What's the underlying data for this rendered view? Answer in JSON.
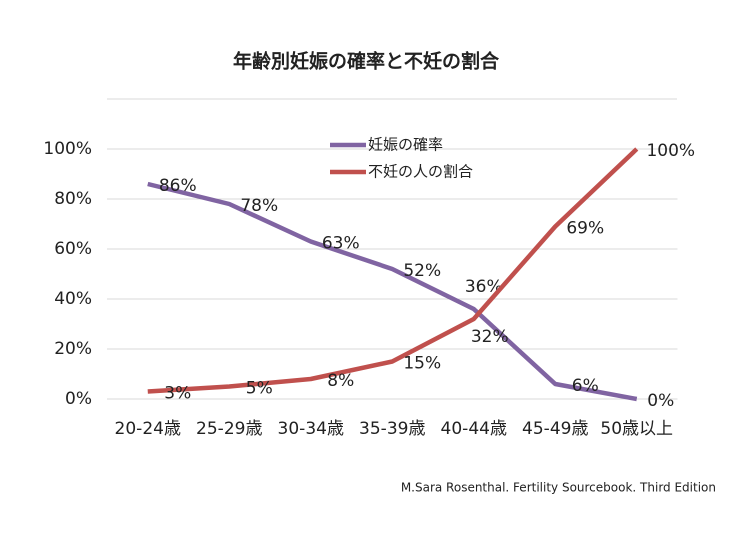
{
  "chart_data": {
    "type": "line",
    "title": "年齢別妊娠の確率と不妊の割合",
    "categories": [
      "20-24歳",
      "25-29歳",
      "30-34歳",
      "35-39歳",
      "40-44歳",
      "45-49歳",
      "50歳以上"
    ],
    "series": [
      {
        "name": "妊娠の確率",
        "color": "#8064a2",
        "values": [
          86,
          78,
          63,
          52,
          36,
          6,
          0
        ],
        "value_labels": [
          "86%",
          "78%",
          "63%",
          "52%",
          "36%",
          "6%",
          "0%"
        ]
      },
      {
        "name": "不妊の人の割合",
        "color": "#c0504d",
        "values": [
          3,
          5,
          8,
          15,
          32,
          69,
          100
        ],
        "value_labels": [
          "3%",
          "5%",
          "8%",
          "15%",
          "32%",
          "69%",
          "100%"
        ]
      }
    ],
    "ylim": [
      0,
      120
    ],
    "yticks": [
      {
        "value": 0,
        "label": "0%"
      },
      {
        "value": 20,
        "label": "20%"
      },
      {
        "value": 40,
        "label": "40%"
      },
      {
        "value": 60,
        "label": "60%"
      },
      {
        "value": 80,
        "label": "80%"
      },
      {
        "value": 100,
        "label": "100%"
      }
    ],
    "grid": true,
    "source": "M.Sara Rosenthal. Fertility Sourcebook. Third Edition"
  }
}
